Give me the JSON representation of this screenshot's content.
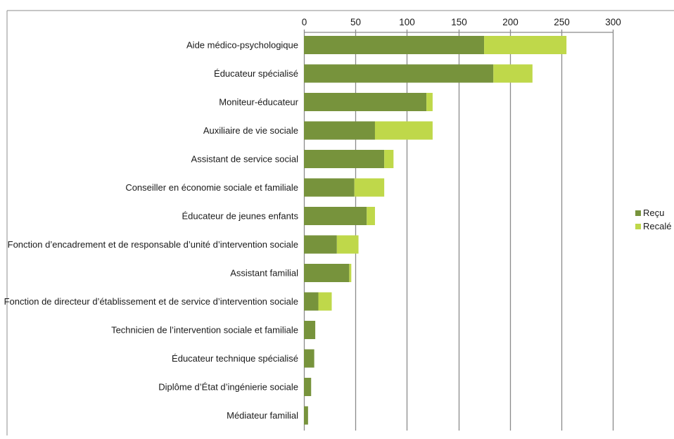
{
  "chart_data": {
    "type": "bar",
    "orientation": "horizontal",
    "stacked": true,
    "categories": [
      "Aide médico-psychologique",
      "Éducateur spécialisé",
      "Moniteur-éducateur",
      "Auxiliaire de vie sociale",
      "Assistant de service social",
      "Conseiller en économie sociale et familiale",
      "Éducateur de jeunes enfants",
      "Fonction d’encadrement et de responsable d’unité d’intervention sociale",
      "Assistant familial",
      "Fonction de directeur d’établissement et de service d’intervention sociale",
      "Technicien de l’intervention sociale et familiale",
      "Éducateur technique spécialisé",
      "Diplôme d’État d’ingénierie sociale",
      "Médiateur familial"
    ],
    "series": [
      {
        "name": "Reçu",
        "color": "#77933c",
        "values": [
          175,
          184,
          119,
          69,
          78,
          49,
          61,
          32,
          44,
          14,
          11,
          10,
          7,
          4
        ]
      },
      {
        "name": "Recalé",
        "color": "#bfd84a",
        "values": [
          80,
          38,
          6,
          56,
          9,
          29,
          8,
          21,
          2,
          13,
          0,
          0,
          0,
          0
        ]
      }
    ],
    "xlim": [
      0,
      300
    ],
    "xticks": [
      0,
      50,
      100,
      150,
      200,
      250,
      300
    ],
    "xaxis_position": "top",
    "grid": true,
    "legend": "right"
  }
}
